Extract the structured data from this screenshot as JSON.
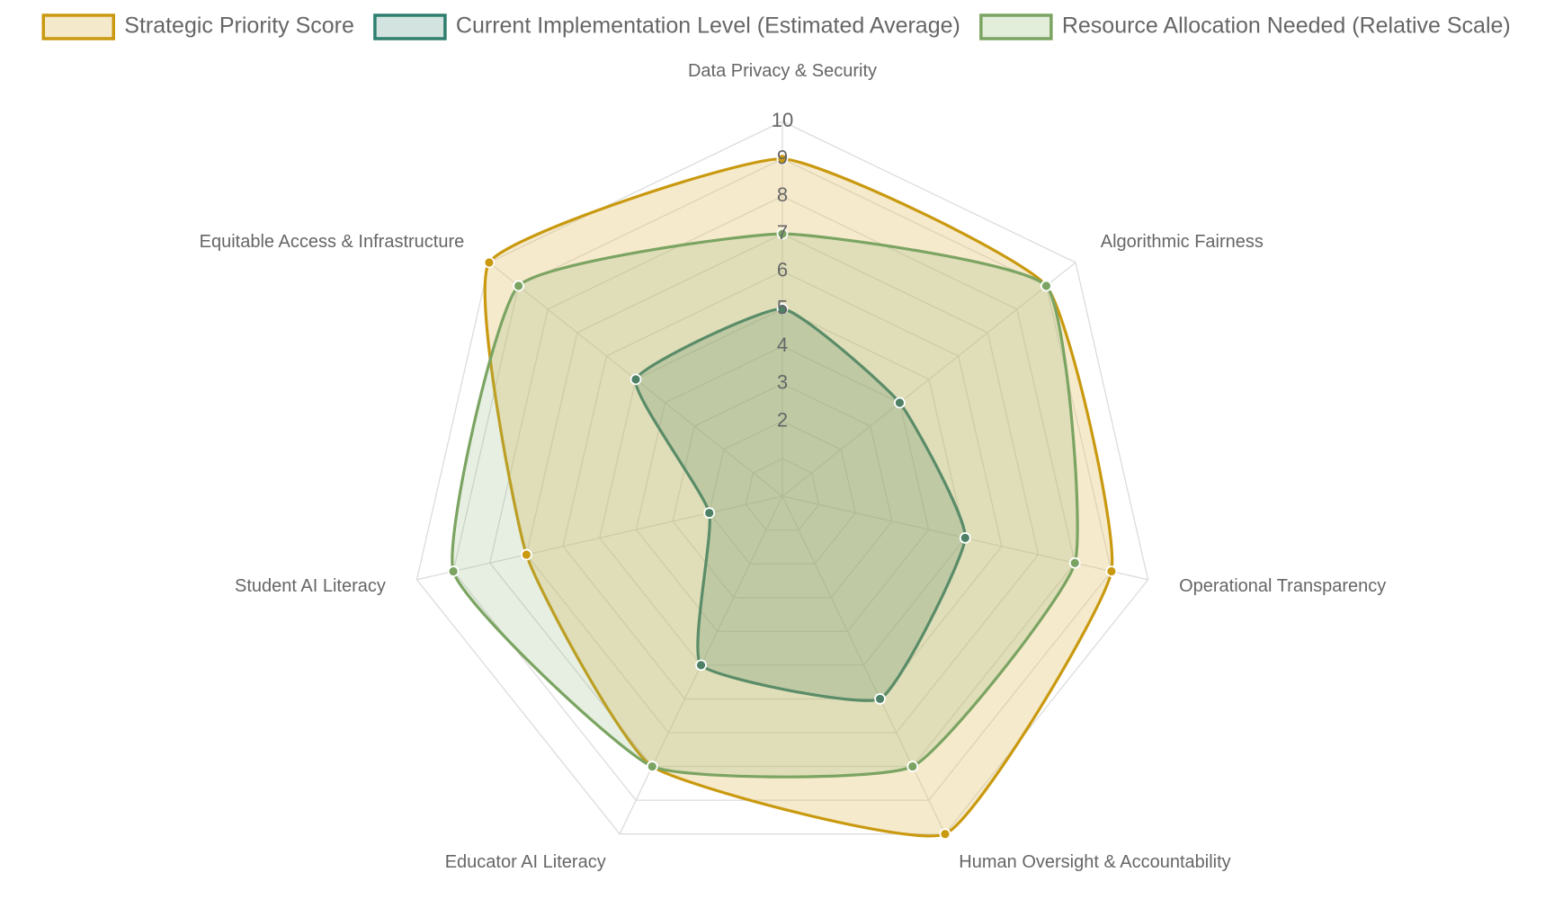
{
  "chart_data": {
    "type": "radar",
    "title": "",
    "axes": [
      "Data Privacy & Security",
      "Algorithmic Fairness",
      "Operational Transparency",
      "Human Oversight & Accountability",
      "Educator AI Literacy",
      "Student AI Literacy",
      "Equitable Access & Infrastructure"
    ],
    "r_range": [
      0,
      10
    ],
    "ticks": [
      2,
      3,
      4,
      5,
      6,
      7,
      8,
      9,
      10
    ],
    "tick_labels": [
      "2",
      "3",
      "4",
      "5",
      "6",
      "7",
      "8",
      "9",
      "10"
    ],
    "grid": true,
    "legend_position": "top",
    "series": [
      {
        "name": "Strategic Priority Score",
        "values": [
          9,
          9,
          9,
          10,
          8,
          7,
          10
        ],
        "color": "#c9990f",
        "fill": "rgba(228, 196, 110, 0.35)"
      },
      {
        "name": "Current Implementation Level (Estimated Average)",
        "values": [
          5,
          4,
          5,
          6,
          5,
          2,
          5
        ],
        "color": "#4d8065",
        "fill": "rgba(100, 140, 110, 0.28)"
      },
      {
        "name": "Resource Allocation Needed (Relative Scale)",
        "values": [
          7,
          9,
          8,
          8,
          8,
          9,
          9
        ],
        "color": "#7ba462",
        "fill": "rgba(140, 180, 120, 0.22)"
      }
    ],
    "legend_swatches": [
      {
        "border": "#c9990f",
        "fill": "#f5e9cc"
      },
      {
        "border": "#2f7f6e",
        "fill": "#d3e3e0"
      },
      {
        "border": "#7ba462",
        "fill": "#e2edda"
      }
    ]
  }
}
